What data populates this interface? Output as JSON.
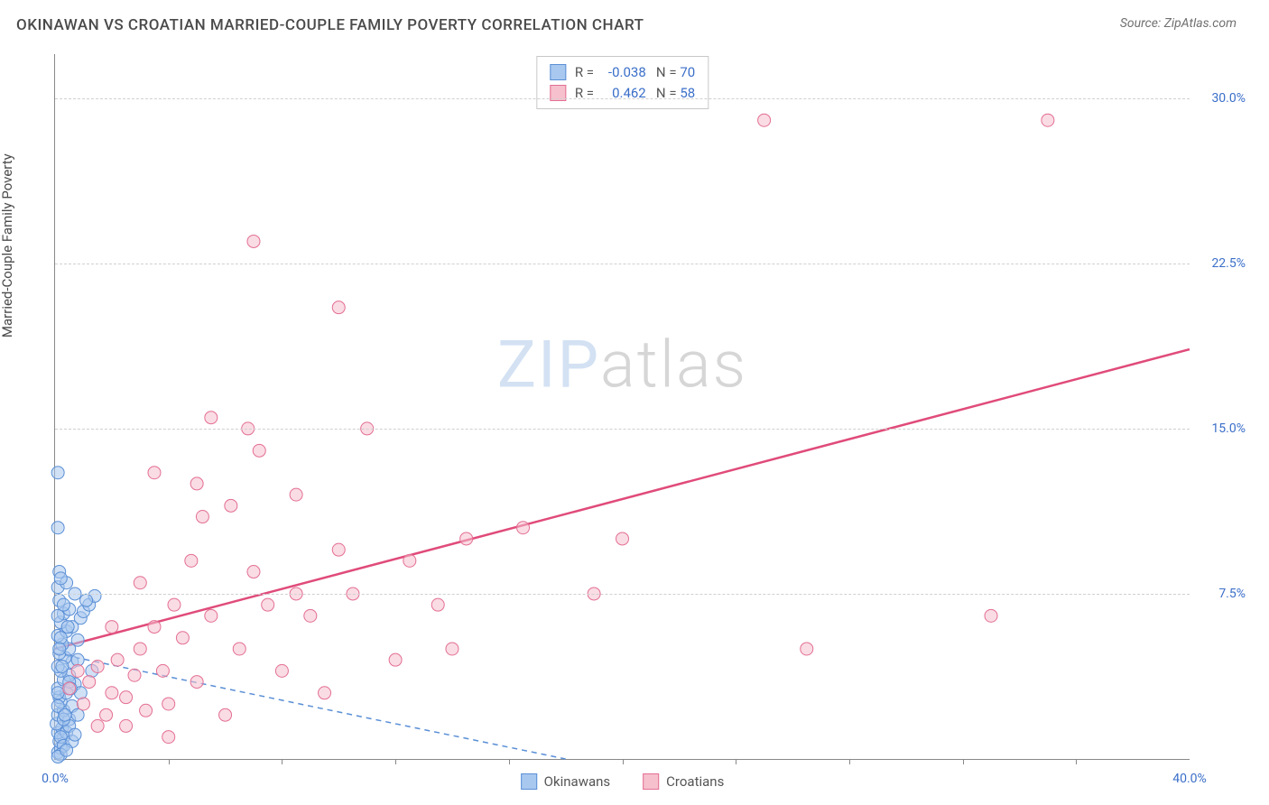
{
  "header": {
    "title": "OKINAWAN VS CROATIAN MARRIED-COUPLE FAMILY POVERTY CORRELATION CHART",
    "source_prefix": "Source: ",
    "source_name": "ZipAtlas.com"
  },
  "ylabel": "Married-Couple Family Poverty",
  "watermark": {
    "part1": "ZIP",
    "part2": "atlas"
  },
  "colors": {
    "series1_fill": "#a9c8ef",
    "series1_stroke": "#5a8fd6",
    "series2_fill": "#f6c0cd",
    "series2_stroke": "#e36f93",
    "grid": "#d0d0d0",
    "axis": "#888888",
    "tick_text": "#3b6fc9",
    "text": "#4a4a4a",
    "trend2": "#e04b7a",
    "trend1": "#5a8fd6"
  },
  "axes": {
    "xmin": 0,
    "xmax": 40,
    "ymin": 0,
    "ymax": 32,
    "yticks": [
      {
        "v": 7.5,
        "label": "7.5%"
      },
      {
        "v": 15,
        "label": "15.0%"
      },
      {
        "v": 22.5,
        "label": "22.5%"
      },
      {
        "v": 30,
        "label": "30.0%"
      }
    ],
    "x_minor_step": 4,
    "xlabels": [
      {
        "v": 0,
        "label": "0.0%"
      },
      {
        "v": 40,
        "label": "40.0%"
      }
    ]
  },
  "stats": {
    "rows": [
      {
        "r": "-0.038",
        "n": "70",
        "color_key": "series1"
      },
      {
        "r": "0.462",
        "n": "58",
        "color_key": "series2"
      }
    ],
    "r_prefix": "R =",
    "n_prefix": "N ="
  },
  "legend": {
    "items": [
      {
        "label": "Okinawans",
        "color_key": "series1"
      },
      {
        "label": "Croatians",
        "color_key": "series2"
      }
    ]
  },
  "trend_lines": {
    "series1": {
      "x1": 0,
      "y1": 4.8,
      "x2": 18,
      "y2": 0,
      "dashed": true
    },
    "series2": {
      "x1": 0,
      "y1": 5.0,
      "x2": 40,
      "y2": 18.6,
      "dashed": false
    }
  },
  "points": {
    "series1": [
      [
        0.1,
        0.3
      ],
      [
        0.2,
        0.5
      ],
      [
        0.15,
        0.8
      ],
      [
        0.3,
        1.0
      ],
      [
        0.1,
        1.2
      ],
      [
        0.25,
        1.4
      ],
      [
        0.05,
        1.6
      ],
      [
        0.4,
        1.2
      ],
      [
        0.5,
        1.8
      ],
      [
        0.1,
        2.0
      ],
      [
        0.3,
        2.2
      ],
      [
        0.6,
        2.4
      ],
      [
        0.2,
        2.6
      ],
      [
        0.15,
        2.8
      ],
      [
        0.4,
        3.0
      ],
      [
        0.1,
        3.2
      ],
      [
        0.7,
        3.4
      ],
      [
        0.3,
        3.6
      ],
      [
        0.5,
        3.8
      ],
      [
        0.2,
        4.0
      ],
      [
        0.1,
        4.2
      ],
      [
        0.6,
        4.4
      ],
      [
        0.35,
        4.6
      ],
      [
        0.15,
        4.8
      ],
      [
        0.5,
        5.0
      ],
      [
        0.25,
        5.2
      ],
      [
        0.8,
        5.4
      ],
      [
        0.1,
        5.6
      ],
      [
        0.4,
        5.8
      ],
      [
        0.6,
        6.0
      ],
      [
        0.2,
        6.2
      ],
      [
        0.9,
        6.4
      ],
      [
        0.3,
        6.6
      ],
      [
        1.0,
        6.7
      ],
      [
        0.5,
        6.8
      ],
      [
        1.2,
        7.0
      ],
      [
        0.15,
        7.2
      ],
      [
        1.4,
        7.4
      ],
      [
        0.7,
        7.5
      ],
      [
        0.1,
        7.8
      ],
      [
        0.4,
        8.0
      ],
      [
        1.1,
        7.2
      ],
      [
        0.2,
        1.0
      ],
      [
        0.8,
        2.0
      ],
      [
        0.3,
        0.6
      ],
      [
        0.9,
        3.0
      ],
      [
        0.5,
        1.5
      ],
      [
        1.3,
        4.0
      ],
      [
        0.2,
        0.2
      ],
      [
        0.6,
        0.8
      ],
      [
        0.1,
        0.1
      ],
      [
        0.4,
        0.4
      ],
      [
        0.7,
        1.1
      ],
      [
        0.3,
        1.8
      ],
      [
        0.1,
        2.4
      ],
      [
        0.5,
        3.5
      ],
      [
        0.2,
        5.5
      ],
      [
        0.8,
        4.5
      ],
      [
        0.1,
        6.5
      ],
      [
        0.3,
        7.0
      ],
      [
        0.1,
        13.0
      ],
      [
        0.1,
        10.5
      ],
      [
        0.15,
        8.5
      ],
      [
        0.2,
        8.2
      ],
      [
        0.1,
        3.0
      ],
      [
        0.25,
        4.2
      ],
      [
        0.35,
        2.0
      ],
      [
        0.15,
        5.0
      ],
      [
        0.45,
        6.0
      ],
      [
        0.55,
        3.2
      ]
    ],
    "series2": [
      [
        0.5,
        3.2
      ],
      [
        0.8,
        4.0
      ],
      [
        1.0,
        2.5
      ],
      [
        1.2,
        3.5
      ],
      [
        1.5,
        4.2
      ],
      [
        1.8,
        2.0
      ],
      [
        2.0,
        3.0
      ],
      [
        2.2,
        4.5
      ],
      [
        2.5,
        1.5
      ],
      [
        2.8,
        3.8
      ],
      [
        3.0,
        5.0
      ],
      [
        3.2,
        2.2
      ],
      [
        3.5,
        6.0
      ],
      [
        3.8,
        4.0
      ],
      [
        4.0,
        2.5
      ],
      [
        4.5,
        5.5
      ],
      [
        5.0,
        3.5
      ],
      [
        4.2,
        7.0
      ],
      [
        5.5,
        6.5
      ],
      [
        4.8,
        9.0
      ],
      [
        5.2,
        11.0
      ],
      [
        6.0,
        2.0
      ],
      [
        6.5,
        5.0
      ],
      [
        7.0,
        8.5
      ],
      [
        3.5,
        13.0
      ],
      [
        5.0,
        12.5
      ],
      [
        6.2,
        11.5
      ],
      [
        7.5,
        7.0
      ],
      [
        8.0,
        4.0
      ],
      [
        8.5,
        7.5
      ],
      [
        5.5,
        15.5
      ],
      [
        6.8,
        15.0
      ],
      [
        7.2,
        14.0
      ],
      [
        9.0,
        6.5
      ],
      [
        9.5,
        3.0
      ],
      [
        10.0,
        9.5
      ],
      [
        8.5,
        12.0
      ],
      [
        10.5,
        7.5
      ],
      [
        11.0,
        15.0
      ],
      [
        10.0,
        20.5
      ],
      [
        12.0,
        4.5
      ],
      [
        12.5,
        9.0
      ],
      [
        13.5,
        7.0
      ],
      [
        14.0,
        5.0
      ],
      [
        14.5,
        10.0
      ],
      [
        16.5,
        10.5
      ],
      [
        19.0,
        7.5
      ],
      [
        20.0,
        10.0
      ],
      [
        7.0,
        23.5
      ],
      [
        26.5,
        5.0
      ],
      [
        25.0,
        29.0
      ],
      [
        35.0,
        29.0
      ],
      [
        33.0,
        6.5
      ],
      [
        2.0,
        6.0
      ],
      [
        3.0,
        8.0
      ],
      [
        4.0,
        1.0
      ],
      [
        1.5,
        1.5
      ],
      [
        2.5,
        2.8
      ]
    ]
  },
  "marker_radius": 7
}
